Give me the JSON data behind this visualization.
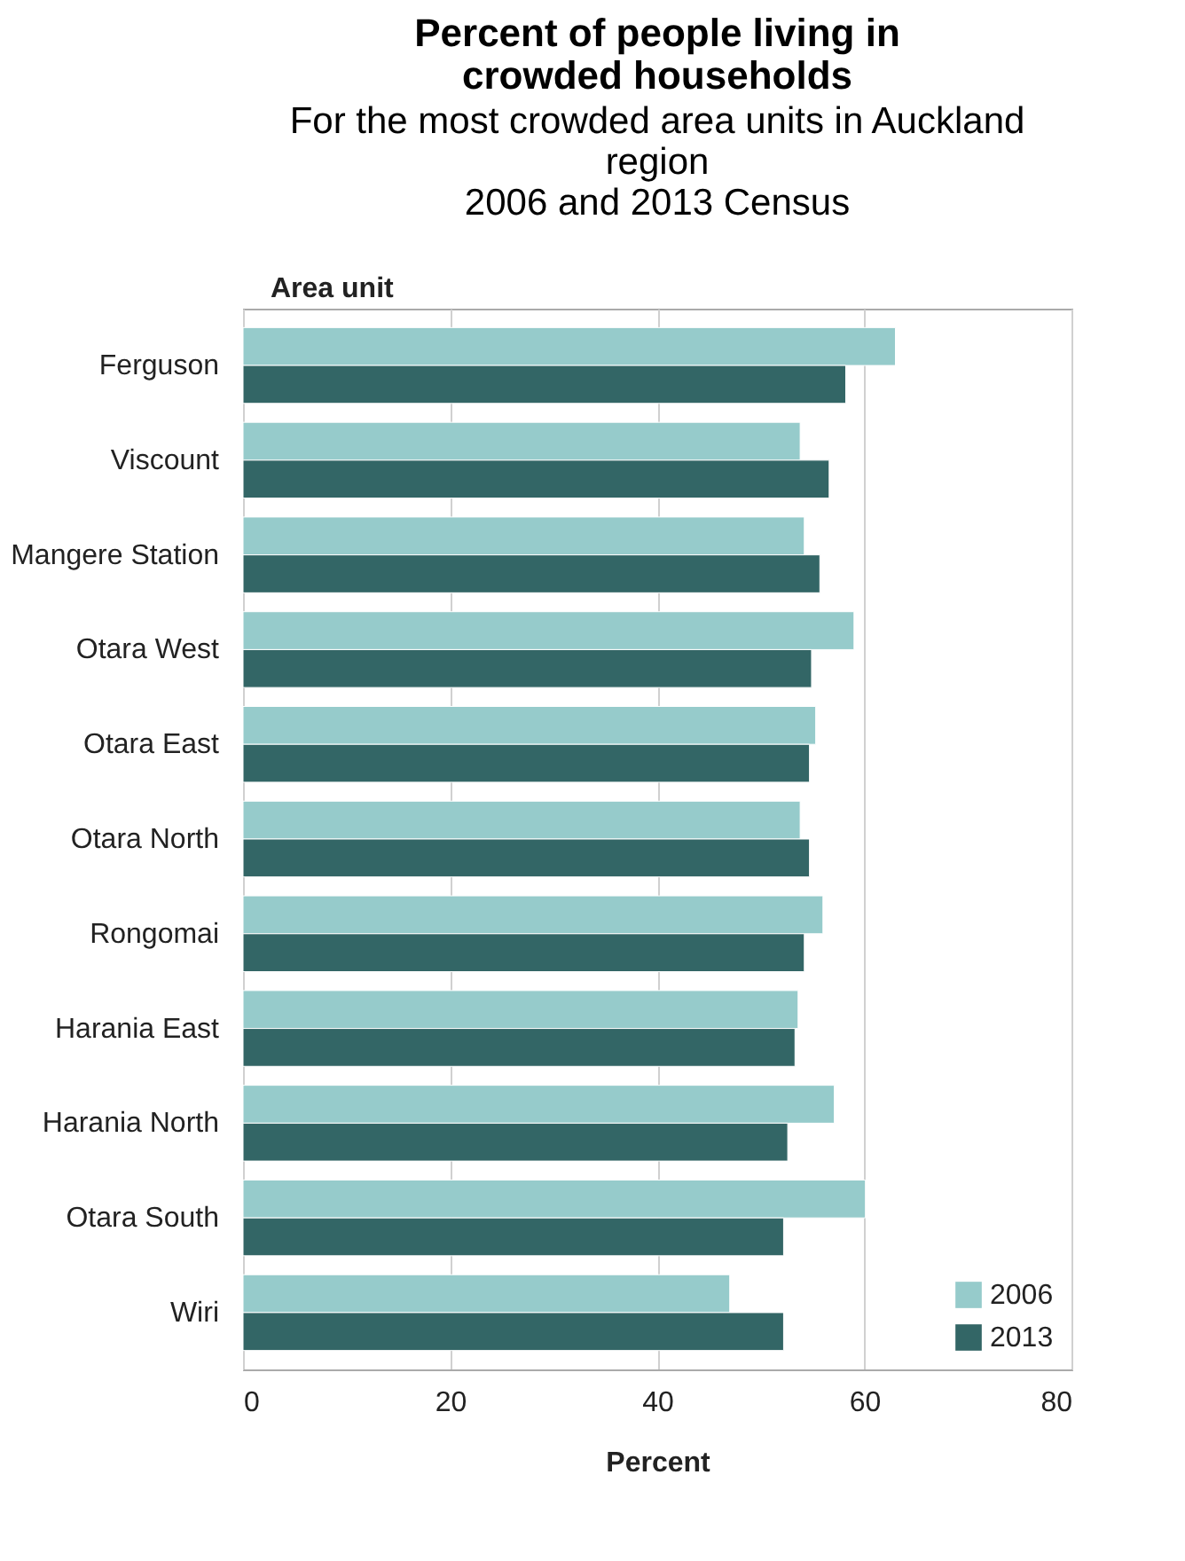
{
  "chart_data": {
    "type": "bar",
    "orientation": "horizontal",
    "title": "Percent of people living in crowded households",
    "subtitle": "For the most crowded area units in Auckland region\n2006 and 2013 Census",
    "xlabel": "Percent",
    "ylabel": "Area unit",
    "categories": [
      "Ferguson",
      "Viscount",
      "Mangere Station",
      "Otara West",
      "Otara East",
      "Otara North",
      "Rongomai",
      "Harania East",
      "Harania North",
      "Otara South",
      "Wiri"
    ],
    "series": [
      {
        "name": "2006",
        "color": "#96cbcb",
        "values": [
          63.0,
          53.8,
          54.2,
          59.0,
          55.3,
          53.8,
          56.0,
          53.6,
          57.1,
          60.1,
          47.0
        ]
      },
      {
        "name": "2013",
        "color": "#336666",
        "values": [
          58.2,
          56.6,
          55.7,
          54.9,
          54.7,
          54.7,
          54.2,
          53.3,
          52.6,
          52.2,
          52.2
        ]
      }
    ],
    "xlim": [
      0,
      80
    ],
    "xticks": [
      0,
      20,
      40,
      60,
      80
    ],
    "grid": "x",
    "legend": "bottom right"
  }
}
